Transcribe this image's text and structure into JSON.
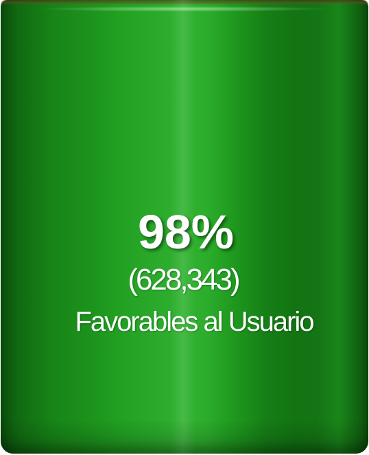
{
  "chart_data": {
    "type": "bar",
    "categories": [
      "Favorables al Usuario"
    ],
    "values": [
      98
    ],
    "value_labels": [
      "98%"
    ],
    "counts": [
      "(628,343)"
    ],
    "colors": {
      "bar": "#1c921c",
      "text": "#ffffff"
    }
  }
}
